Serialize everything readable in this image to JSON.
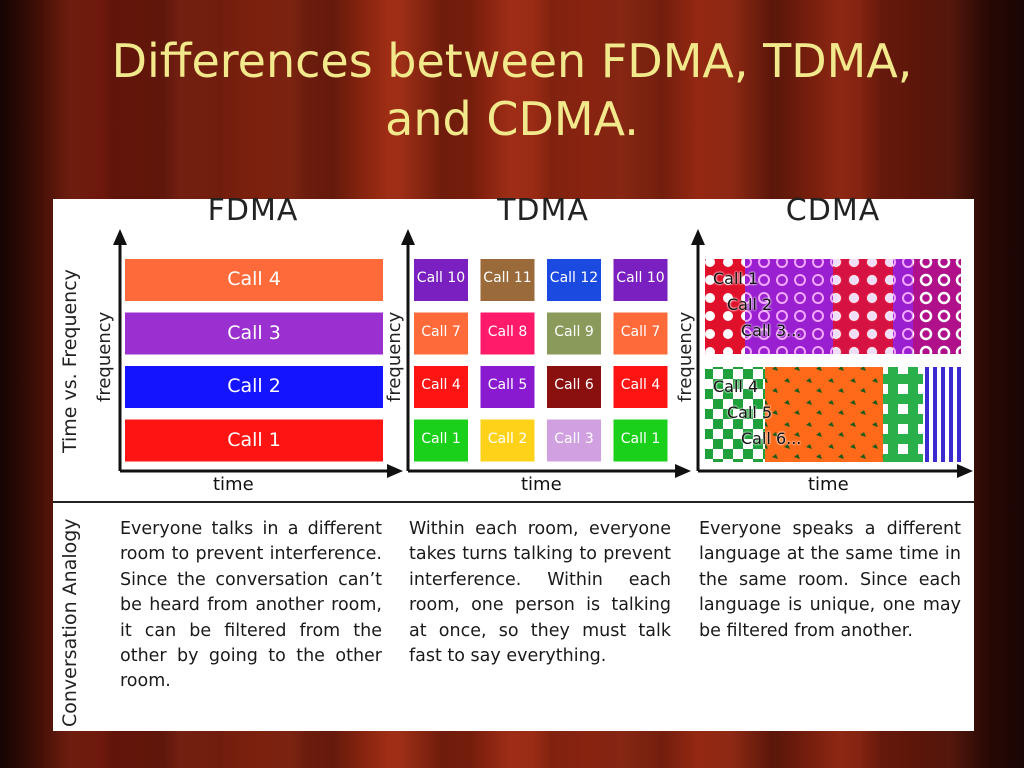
{
  "slide": {
    "title_line1": "Differences between FDMA, TDMA,",
    "title_line2": "and CDMA."
  },
  "headings": {
    "fdma": "FDMA",
    "tdma": "TDMA",
    "cdma": "CDMA"
  },
  "side_labels": {
    "time_vs_frequency": "Time vs. Frequency",
    "conversation_analogy": "Conversation Analogy"
  },
  "axes": {
    "frequency": "frequency",
    "time": "time"
  },
  "fdma_calls": [
    {
      "label": "Call 4",
      "color": "#ff6a3a"
    },
    {
      "label": "Call 3",
      "color": "#9b30d0"
    },
    {
      "label": "Call 2",
      "color": "#1414ff"
    },
    {
      "label": "Call 1",
      "color": "#ff1414"
    }
  ],
  "tdma_rows": [
    [
      {
        "label": "Call 10",
        "color": "#7a1fc0"
      },
      {
        "label": "Call 11",
        "color": "#9a6a3a"
      },
      {
        "label": "Call 12",
        "color": "#1a4ae0"
      },
      {
        "label": "Call 10",
        "color": "#7a1fc0"
      }
    ],
    [
      {
        "label": "Call 7",
        "color": "#ff6a3a"
      },
      {
        "label": "Call 8",
        "color": "#ff1a6a"
      },
      {
        "label": "Call 9",
        "color": "#8a9a5a"
      },
      {
        "label": "Call 7",
        "color": "#ff6a3a"
      }
    ],
    [
      {
        "label": "Call 4",
        "color": "#ff1414"
      },
      {
        "label": "Call 5",
        "color": "#8a1ad0"
      },
      {
        "label": "Call 6",
        "color": "#8a1010"
      },
      {
        "label": "Call 4",
        "color": "#ff1414"
      }
    ],
    [
      {
        "label": "Call 1",
        "color": "#1ad01a"
      },
      {
        "label": "Call 2",
        "color": "#ffd21a"
      },
      {
        "label": "Call 3",
        "color": "#d0a0e0"
      },
      {
        "label": "Call 1",
        "color": "#1ad01a"
      }
    ]
  ],
  "cdma_labels": {
    "upper": [
      "Call 1",
      "Call 2",
      "Call 3..."
    ],
    "lower": [
      "Call 4",
      "Call 5",
      "Call 6..."
    ]
  },
  "descriptions": {
    "fdma": "Everyone talks in a different room to prevent interference. Since the conversation can’t be heard from another room, it can be filtered from the other by going to the other room.",
    "tdma": "Within each room, everyone takes turns talking to prevent interference. Within each room, one person is talking at once, so they must talk fast to say everything.",
    "cdma": "Everyone speaks a different language at the same time in the same room. Since each language is unique, one may be filtered from another."
  }
}
